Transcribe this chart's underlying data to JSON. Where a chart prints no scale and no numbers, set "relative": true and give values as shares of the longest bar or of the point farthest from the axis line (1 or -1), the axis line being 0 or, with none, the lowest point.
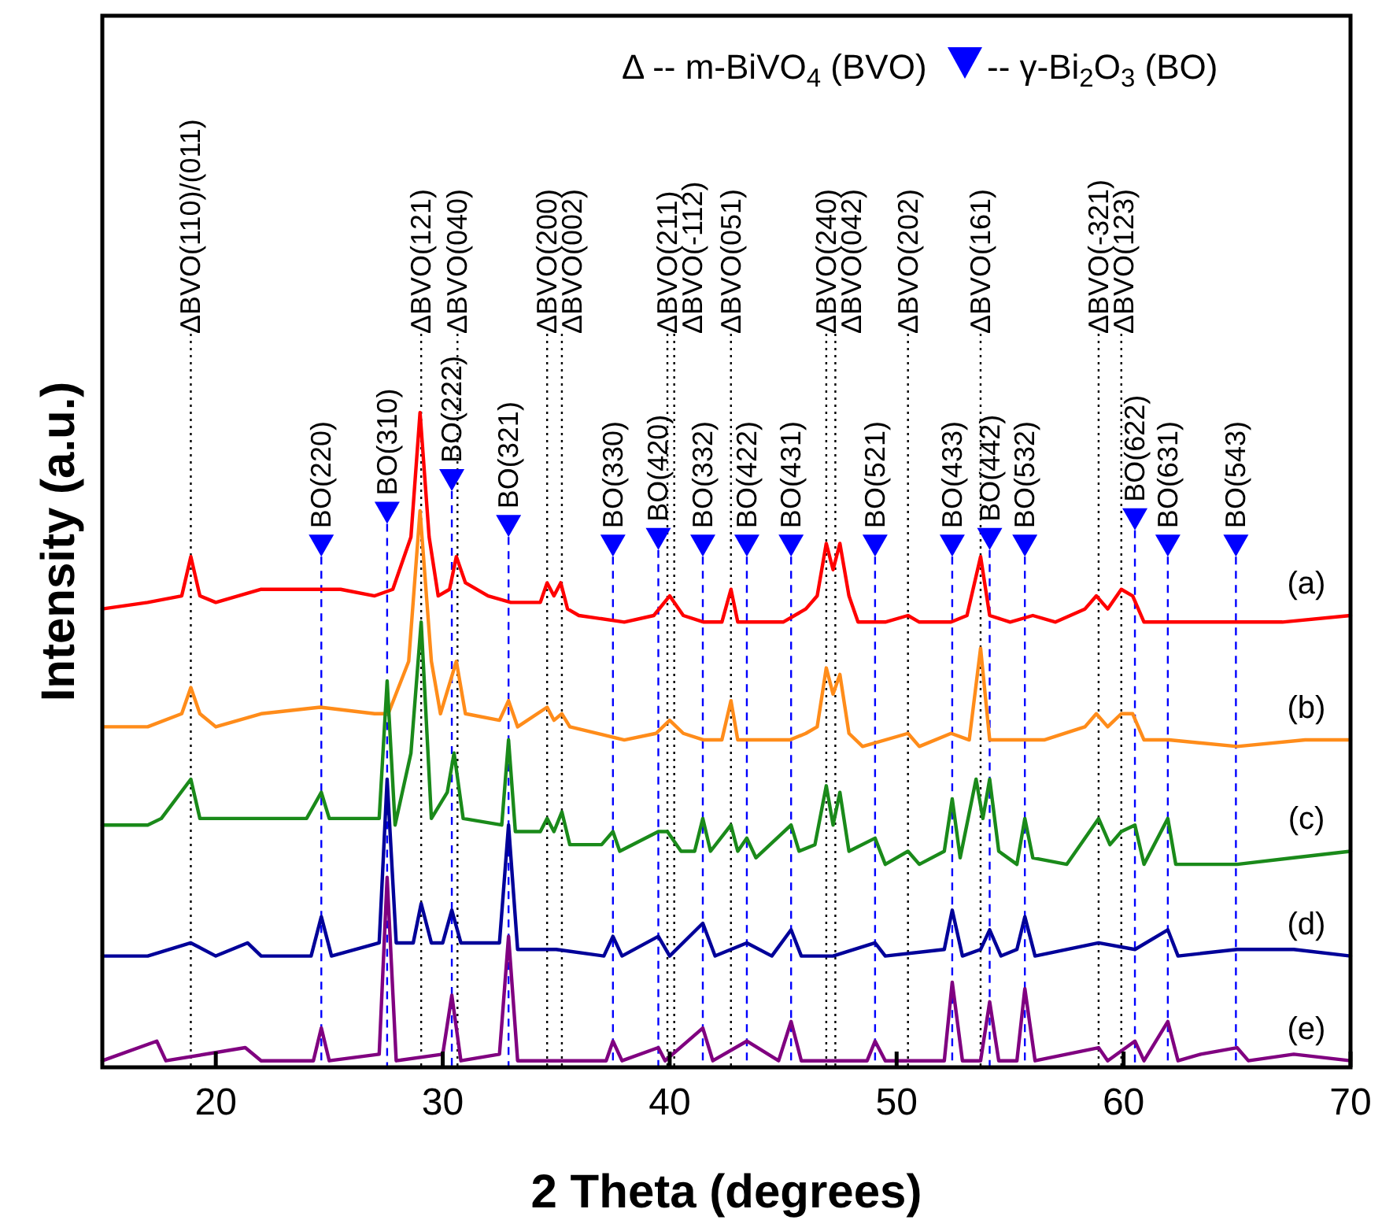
{
  "chart_data": {
    "type": "line",
    "relative": true,
    "xlabel": "2 Theta (degrees)",
    "ylabel": "Intensity (a.u.)",
    "xlim": [
      15,
      70
    ],
    "xticks": [
      20,
      30,
      40,
      50,
      60,
      70
    ],
    "legend": false,
    "grid": false,
    "marker": "none",
    "line_style": "solid",
    "annotations": [
      "Δ -- m-BiVO$_{4}$ (BVO)",
      "-- γ-Bi$_{2}$O$_{3}$ (BO)"
    ],
    "series": [
      {
        "name": "(a)",
        "color": "#ff0000",
        "x": [
          15,
          17,
          18.5,
          18.9,
          19.3,
          20,
          22,
          24,
          25.5,
          27,
          27.8,
          28.6,
          29.0,
          29.4,
          29.8,
          30.3,
          30.6,
          31,
          32,
          33,
          34.3,
          34.6,
          34.9,
          35.2,
          35.5,
          36,
          38,
          39.3,
          40,
          40.6,
          41.5,
          42.3,
          42.7,
          43.0,
          45,
          46,
          46.5,
          46.9,
          47.2,
          47.5,
          47.9,
          48.3,
          49.5,
          50.5,
          51,
          52.4,
          53.1,
          53.7,
          54.1,
          55,
          56,
          57,
          58.3,
          58.8,
          59.3,
          59.9,
          60.4,
          60.9,
          63,
          65,
          67,
          70
        ],
        "values": [
          0.7,
          0.71,
          0.72,
          0.78,
          0.72,
          0.71,
          0.73,
          0.73,
          0.73,
          0.72,
          0.73,
          0.81,
          1.0,
          0.81,
          0.72,
          0.73,
          0.78,
          0.74,
          0.72,
          0.71,
          0.71,
          0.74,
          0.72,
          0.74,
          0.7,
          0.69,
          0.68,
          0.69,
          0.72,
          0.69,
          0.68,
          0.68,
          0.73,
          0.68,
          0.68,
          0.7,
          0.72,
          0.8,
          0.76,
          0.8,
          0.72,
          0.68,
          0.68,
          0.69,
          0.68,
          0.68,
          0.69,
          0.78,
          0.69,
          0.68,
          0.69,
          0.68,
          0.7,
          0.72,
          0.7,
          0.73,
          0.72,
          0.68,
          0.68,
          0.68,
          0.68,
          0.69
        ]
      },
      {
        "name": "(b)",
        "color": "#ff8c1a",
        "x": [
          15,
          17,
          18.5,
          18.9,
          19.3,
          20,
          22,
          24.6,
          27,
          27.6,
          28.5,
          29.0,
          29.5,
          29.9,
          30.6,
          31,
          32.5,
          32.9,
          33.3,
          34.6,
          34.9,
          35.25,
          35.6,
          38,
          39.4,
          40,
          40.6,
          41.5,
          42.3,
          42.7,
          43,
          45.3,
          46,
          46.5,
          46.9,
          47.2,
          47.5,
          47.9,
          48.5,
          50.5,
          51,
          52.4,
          53.2,
          53.7,
          54.1,
          55.7,
          56.5,
          58.3,
          58.8,
          59.3,
          59.9,
          60.4,
          60.9,
          62,
          65,
          68,
          70
        ],
        "values": [
          0.52,
          0.52,
          0.54,
          0.58,
          0.54,
          0.52,
          0.54,
          0.55,
          0.54,
          0.54,
          0.62,
          0.85,
          0.62,
          0.54,
          0.62,
          0.54,
          0.53,
          0.56,
          0.52,
          0.55,
          0.53,
          0.54,
          0.52,
          0.5,
          0.51,
          0.53,
          0.51,
          0.5,
          0.5,
          0.56,
          0.5,
          0.5,
          0.51,
          0.52,
          0.61,
          0.57,
          0.6,
          0.51,
          0.49,
          0.51,
          0.49,
          0.51,
          0.5,
          0.64,
          0.5,
          0.5,
          0.5,
          0.52,
          0.54,
          0.52,
          0.54,
          0.54,
          0.5,
          0.5,
          0.49,
          0.5,
          0.5
        ]
      },
      {
        "name": "(c)",
        "color": "#1a8a1a",
        "x": [
          15,
          17,
          17.6,
          18.9,
          19.3,
          21.5,
          24,
          24.65,
          25,
          27.2,
          27.55,
          27.9,
          28.6,
          29.05,
          29.5,
          30.2,
          30.5,
          30.9,
          32.6,
          32.9,
          33.2,
          34.3,
          34.6,
          34.9,
          35.25,
          35.6,
          37,
          37.5,
          37.8,
          39.5,
          39.9,
          40.5,
          41.1,
          41.46,
          41.8,
          42.7,
          43.0,
          43.4,
          43.8,
          45.35,
          45.7,
          46.4,
          46.9,
          47.2,
          47.5,
          47.9,
          49.05,
          49.5,
          50.5,
          51,
          52.1,
          52.45,
          52.8,
          53.5,
          53.8,
          54.1,
          54.5,
          55.3,
          55.65,
          56,
          57.5,
          58.9,
          59.4,
          59.9,
          60.5,
          60.9,
          61.95,
          62.3,
          65,
          67.5,
          70
        ],
        "values": [
          0.37,
          0.37,
          0.38,
          0.44,
          0.38,
          0.38,
          0.38,
          0.42,
          0.38,
          0.38,
          0.59,
          0.37,
          0.48,
          0.68,
          0.38,
          0.42,
          0.48,
          0.38,
          0.37,
          0.5,
          0.36,
          0.36,
          0.38,
          0.36,
          0.39,
          0.34,
          0.34,
          0.36,
          0.33,
          0.36,
          0.36,
          0.33,
          0.33,
          0.38,
          0.33,
          0.37,
          0.33,
          0.35,
          0.32,
          0.37,
          0.33,
          0.34,
          0.43,
          0.37,
          0.42,
          0.33,
          0.35,
          0.31,
          0.33,
          0.31,
          0.33,
          0.41,
          0.32,
          0.44,
          0.38,
          0.44,
          0.33,
          0.31,
          0.38,
          0.32,
          0.31,
          0.38,
          0.34,
          0.36,
          0.37,
          0.31,
          0.38,
          0.31,
          0.31,
          0.32,
          0.33
        ]
      },
      {
        "name": "(d)",
        "color": "#000099",
        "x": [
          15,
          17,
          18.9,
          20,
          21.4,
          22,
          24.2,
          24.65,
          25.1,
          27.2,
          27.55,
          27.95,
          28.7,
          29.05,
          29.5,
          30.0,
          30.4,
          30.8,
          32.5,
          32.9,
          33.3,
          35,
          37.1,
          37.5,
          37.9,
          39.5,
          40,
          41.46,
          42,
          43.4,
          44.5,
          45.35,
          45.8,
          47.2,
          49.05,
          49.5,
          52.1,
          52.45,
          52.9,
          53.7,
          54.1,
          54.6,
          55.3,
          55.65,
          56.1,
          58.9,
          60.5,
          61.95,
          62.4,
          65,
          67.5,
          70
        ],
        "values": [
          0.17,
          0.17,
          0.19,
          0.17,
          0.19,
          0.17,
          0.17,
          0.23,
          0.17,
          0.19,
          0.44,
          0.19,
          0.19,
          0.25,
          0.19,
          0.19,
          0.24,
          0.19,
          0.19,
          0.37,
          0.18,
          0.18,
          0.17,
          0.2,
          0.17,
          0.2,
          0.17,
          0.22,
          0.17,
          0.19,
          0.17,
          0.21,
          0.17,
          0.17,
          0.19,
          0.17,
          0.18,
          0.24,
          0.17,
          0.18,
          0.21,
          0.17,
          0.18,
          0.23,
          0.17,
          0.19,
          0.18,
          0.21,
          0.17,
          0.18,
          0.18,
          0.17
        ]
      },
      {
        "name": "(e)",
        "color": "#800080",
        "x": [
          15,
          17.4,
          17.8,
          21.3,
          22,
          24.3,
          24.65,
          25,
          27.2,
          27.55,
          27.95,
          30.0,
          30.4,
          30.8,
          32.5,
          32.9,
          33.3,
          35.2,
          37.2,
          37.5,
          37.9,
          39.5,
          39.8,
          41.46,
          41.9,
          43.4,
          44.8,
          45.35,
          45.8,
          48.7,
          49.05,
          49.5,
          52.1,
          52.45,
          52.9,
          53.7,
          54.1,
          54.5,
          55.3,
          55.65,
          56.1,
          58.9,
          59.3,
          60.5,
          60.9,
          61.95,
          62.4,
          63.4,
          65,
          65.5,
          67.5,
          70
        ],
        "values": [
          0.01,
          0.04,
          0.01,
          0.03,
          0.01,
          0.01,
          0.06,
          0.01,
          0.02,
          0.29,
          0.01,
          0.02,
          0.11,
          0.01,
          0.02,
          0.2,
          0.01,
          0.01,
          0.01,
          0.04,
          0.01,
          0.03,
          0.01,
          0.06,
          0.01,
          0.04,
          0.01,
          0.07,
          0.01,
          0.01,
          0.04,
          0.01,
          0.01,
          0.13,
          0.01,
          0.01,
          0.1,
          0.01,
          0.01,
          0.12,
          0.01,
          0.03,
          0.01,
          0.04,
          0.01,
          0.07,
          0.01,
          0.02,
          0.03,
          0.01,
          0.02,
          0.01
        ]
      }
    ],
    "ref_lines": [
      {
        "axis": "x",
        "value": 18.9,
        "label": "ΔBVO(110)/(011)",
        "color": "#000000",
        "line_style": "dotted"
      },
      {
        "axis": "x",
        "value": 29.05,
        "label": "ΔBVO(121)",
        "color": "#000000",
        "line_style": "dotted"
      },
      {
        "axis": "x",
        "value": 30.65,
        "label": "ΔBVO(040)",
        "color": "#000000",
        "line_style": "dotted"
      },
      {
        "axis": "x",
        "value": 34.6,
        "label": "ΔBVO(200)",
        "color": "#000000",
        "line_style": "dotted"
      },
      {
        "axis": "x",
        "value": 35.25,
        "label": "ΔBVO(002)",
        "color": "#000000",
        "line_style": "dotted"
      },
      {
        "axis": "x",
        "value": 39.9,
        "label": "ΔBVO(211)",
        "color": "#000000",
        "line_style": "dotted"
      },
      {
        "axis": "x",
        "value": 40.2,
        "label": "ΔBVO(-112)",
        "color": "#000000",
        "line_style": "dotted"
      },
      {
        "axis": "x",
        "value": 42.7,
        "label": "ΔBVO(051)",
        "color": "#000000",
        "line_style": "dotted"
      },
      {
        "axis": "x",
        "value": 46.9,
        "label": "ΔBVO(240)",
        "color": "#000000",
        "line_style": "dotted"
      },
      {
        "axis": "x",
        "value": 47.3,
        "label": "ΔBVO(042)",
        "color": "#000000",
        "line_style": "dotted"
      },
      {
        "axis": "x",
        "value": 50.5,
        "label": "ΔBVO(202)",
        "color": "#000000",
        "line_style": "dotted"
      },
      {
        "axis": "x",
        "value": 53.7,
        "label": "ΔBVO(161)",
        "color": "#000000",
        "line_style": "dotted"
      },
      {
        "axis": "x",
        "value": 58.9,
        "label": "ΔBVO(-321)",
        "color": "#000000",
        "line_style": "dotted"
      },
      {
        "axis": "x",
        "value": 59.9,
        "label": "ΔBVO(123)",
        "color": "#000000",
        "line_style": "dotted"
      },
      {
        "axis": "x",
        "value": 24.65,
        "label": "BO(220)",
        "color": "#0000ff",
        "line_style": "dashed"
      },
      {
        "axis": "x",
        "value": 27.55,
        "label": "BO(310)",
        "color": "#0000ff",
        "line_style": "dashed"
      },
      {
        "axis": "x",
        "value": 30.4,
        "label": "BO(222)",
        "color": "#0000ff",
        "line_style": "dashed"
      },
      {
        "axis": "x",
        "value": 32.9,
        "label": "BO(321)",
        "color": "#0000ff",
        "line_style": "dashed"
      },
      {
        "axis": "x",
        "value": 37.5,
        "label": "BO(330)",
        "color": "#0000ff",
        "line_style": "dashed"
      },
      {
        "axis": "x",
        "value": 39.5,
        "label": "BO(420)",
        "color": "#0000ff",
        "line_style": "dashed"
      },
      {
        "axis": "x",
        "value": 41.46,
        "label": "BO(332)",
        "color": "#0000ff",
        "line_style": "dashed"
      },
      {
        "axis": "x",
        "value": 43.4,
        "label": "BO(422)",
        "color": "#0000ff",
        "line_style": "dashed"
      },
      {
        "axis": "x",
        "value": 45.35,
        "label": "BO(431)",
        "color": "#0000ff",
        "line_style": "dashed"
      },
      {
        "axis": "x",
        "value": 49.05,
        "label": "BO(521)",
        "color": "#0000ff",
        "line_style": "dashed"
      },
      {
        "axis": "x",
        "value": 52.45,
        "label": "BO(433)",
        "color": "#0000ff",
        "line_style": "dashed"
      },
      {
        "axis": "x",
        "value": 54.1,
        "label": "BO(442)",
        "color": "#0000ff",
        "line_style": "dashed"
      },
      {
        "axis": "x",
        "value": 55.65,
        "label": "BO(532)",
        "color": "#0000ff",
        "line_style": "dashed"
      },
      {
        "axis": "x",
        "value": 60.5,
        "label": "BO(622)",
        "color": "#0000ff",
        "line_style": "dashed"
      },
      {
        "axis": "x",
        "value": 61.95,
        "label": "BO(631)",
        "color": "#0000ff",
        "line_style": "dashed"
      },
      {
        "axis": "x",
        "value": 64.95,
        "label": "BO(543)",
        "color": "#0000ff",
        "line_style": "dashed"
      }
    ]
  }
}
